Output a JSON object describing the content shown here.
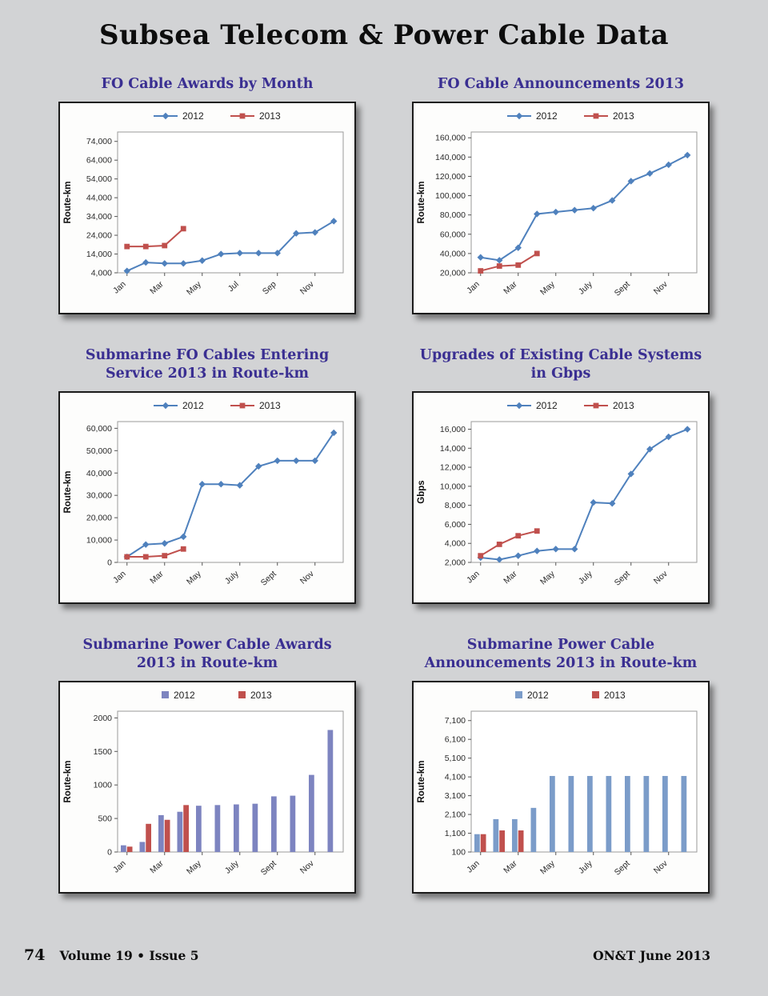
{
  "page": {
    "title": "Subsea Telecom & Power Cable Data",
    "footer": {
      "page_number": "74",
      "volume": "Volume 19 • Issue 5",
      "issue_right": "ON&T June 2013"
    },
    "colors": {
      "background": "#d2d3d5",
      "chart_title": "#3a2f92",
      "line_2012": "#4f81bd",
      "line_2013": "#c0504d",
      "bar_2012_awards": "#7d84c0",
      "bar_2012_announcements": "#7b9cc9",
      "bar_2013": "#c0504d"
    }
  },
  "chart_data": [
    {
      "type": "line",
      "title": "FO Cable Awards by Month",
      "ylabel": "Route-km",
      "categories": [
        "Jan",
        "Feb",
        "Mar",
        "Apr",
        "May",
        "Jun",
        "Jul",
        "Aug",
        "Sep",
        "Oct",
        "Nov",
        "Dec"
      ],
      "xtick_every": 2,
      "ylim": [
        4000,
        79000
      ],
      "yticks": [
        4000,
        14000,
        24000,
        34000,
        44000,
        54000,
        64000,
        74000
      ],
      "ytick_labels": [
        "4,000",
        "14,000",
        "24,000",
        "34,000",
        "44,000",
        "54,000",
        "64,000",
        "74,000"
      ],
      "legend_position": "top",
      "grid": false,
      "series": [
        {
          "name": "2012",
          "color": "#4f81bd",
          "marker": "diamond",
          "values": [
            5000,
            9500,
            9000,
            9000,
            10500,
            14000,
            14500,
            14500,
            14500,
            25000,
            25500,
            31500
          ]
        },
        {
          "name": "2013",
          "color": "#c0504d",
          "marker": "square",
          "values": [
            18000,
            18000,
            18500,
            27500
          ]
        }
      ]
    },
    {
      "type": "line",
      "title": "FO Cable Announcements 2013",
      "ylabel": "Route-km",
      "categories": [
        "Jan",
        "Feb",
        "Mar",
        "Apr",
        "May",
        "June",
        "July",
        "Aug",
        "Sept",
        "Oct",
        "Nov",
        "Dec"
      ],
      "xtick_every": 2,
      "ylim": [
        20000,
        166000
      ],
      "yticks": [
        20000,
        40000,
        60000,
        80000,
        100000,
        120000,
        140000,
        160000
      ],
      "ytick_labels": [
        "20,000",
        "40,000",
        "60,000",
        "80,000",
        "100,000",
        "120,000",
        "140,000",
        "160,000"
      ],
      "legend_position": "top",
      "grid": false,
      "series": [
        {
          "name": "2012",
          "color": "#4f81bd",
          "marker": "diamond",
          "values": [
            36000,
            33000,
            46000,
            81000,
            83000,
            85000,
            87000,
            95000,
            115000,
            123000,
            132000,
            142000
          ]
        },
        {
          "name": "2013",
          "color": "#c0504d",
          "marker": "square",
          "values": [
            22000,
            27000,
            28000,
            40000
          ]
        }
      ]
    },
    {
      "type": "line",
      "title": "Submarine FO Cables Entering\nService 2013 in Route-km",
      "ylabel": "Route-km",
      "categories": [
        "Jan",
        "Feb",
        "Mar",
        "Apr",
        "May",
        "June",
        "July",
        "Aug",
        "Sept",
        "Oct",
        "Nov",
        "Dec"
      ],
      "xtick_every": 2,
      "ylim": [
        0,
        63000
      ],
      "yticks": [
        0,
        10000,
        20000,
        30000,
        40000,
        50000,
        60000
      ],
      "ytick_labels": [
        "0",
        "10,000",
        "20,000",
        "30,000",
        "40,000",
        "50,000",
        "60,000"
      ],
      "legend_position": "top",
      "grid": false,
      "series": [
        {
          "name": "2012",
          "color": "#4f81bd",
          "marker": "diamond",
          "values": [
            2500,
            8000,
            8500,
            11500,
            35000,
            35000,
            34500,
            43000,
            45500,
            45500,
            45500,
            58000
          ]
        },
        {
          "name": "2013",
          "color": "#c0504d",
          "marker": "square",
          "values": [
            2500,
            2500,
            3000,
            6000
          ]
        }
      ]
    },
    {
      "type": "line",
      "title": "Upgrades of Existing Cable Systems\nin Gbps",
      "ylabel": "Gbps",
      "categories": [
        "Jan",
        "Feb",
        "Mar",
        "Apr",
        "May",
        "June",
        "July",
        "Aug",
        "Sept",
        "Oct",
        "Nov",
        "Dec"
      ],
      "xtick_every": 2,
      "ylim": [
        2000,
        16800
      ],
      "yticks": [
        2000,
        4000,
        6000,
        8000,
        10000,
        12000,
        14000,
        16000
      ],
      "ytick_labels": [
        "2,000",
        "4,000",
        "6,000",
        "8,000",
        "10,000",
        "12,000",
        "14,000",
        "16,000"
      ],
      "legend_position": "top",
      "grid": false,
      "series": [
        {
          "name": "2012",
          "color": "#4f81bd",
          "marker": "diamond",
          "values": [
            2500,
            2300,
            2700,
            3200,
            3400,
            3400,
            8300,
            8200,
            11300,
            13900,
            15200,
            16000
          ]
        },
        {
          "name": "2013",
          "color": "#c0504d",
          "marker": "square",
          "values": [
            2700,
            3900,
            4800,
            5300
          ]
        }
      ]
    },
    {
      "type": "bar",
      "title": "Submarine Power Cable Awards\n2013 in Route-km",
      "ylabel": "Route-km",
      "categories": [
        "Jan",
        "Feb",
        "Mar",
        "Apr",
        "May",
        "June",
        "July",
        "Aug",
        "Sept",
        "Oct",
        "Nov",
        "Dec"
      ],
      "xtick_every": 2,
      "ylim": [
        0,
        2100
      ],
      "yticks": [
        0,
        500,
        1000,
        1500,
        2000
      ],
      "ytick_labels": [
        "0",
        "500",
        "1000",
        "1500",
        "2000"
      ],
      "legend_position": "top",
      "grid": false,
      "series": [
        {
          "name": "2012",
          "color": "#7d84c0",
          "marker": "square",
          "values": [
            100,
            150,
            550,
            600,
            690,
            700,
            710,
            720,
            830,
            840,
            1150,
            1820
          ]
        },
        {
          "name": "2013",
          "color": "#c0504d",
          "marker": "square",
          "values": [
            80,
            420,
            480,
            700
          ]
        }
      ]
    },
    {
      "type": "bar",
      "title": "Submarine Power Cable\nAnnouncements 2013 in Route-km",
      "ylabel": "Route-km",
      "categories": [
        "Jan",
        "Feb",
        "Mar",
        "Apr",
        "May",
        "June",
        "July",
        "Aug",
        "Sept",
        "Oct",
        "Nov",
        "Dec"
      ],
      "xtick_every": 2,
      "ylim": [
        100,
        7600
      ],
      "yticks": [
        100,
        1100,
        2100,
        3100,
        4100,
        5100,
        6100,
        7100
      ],
      "ytick_labels": [
        "100",
        "1,100",
        "2,100",
        "3,100",
        "4,100",
        "5,100",
        "6,100",
        "7,100"
      ],
      "legend_position": "top",
      "grid": false,
      "series": [
        {
          "name": "2012",
          "color": "#7b9cc9",
          "marker": "square",
          "values": [
            1050,
            1850,
            1850,
            2450,
            4150,
            4150,
            4150,
            4150,
            4150,
            4150,
            4150,
            4150
          ]
        },
        {
          "name": "2013",
          "color": "#c0504d",
          "marker": "square",
          "values": [
            1050,
            1250,
            1250
          ]
        }
      ]
    }
  ]
}
